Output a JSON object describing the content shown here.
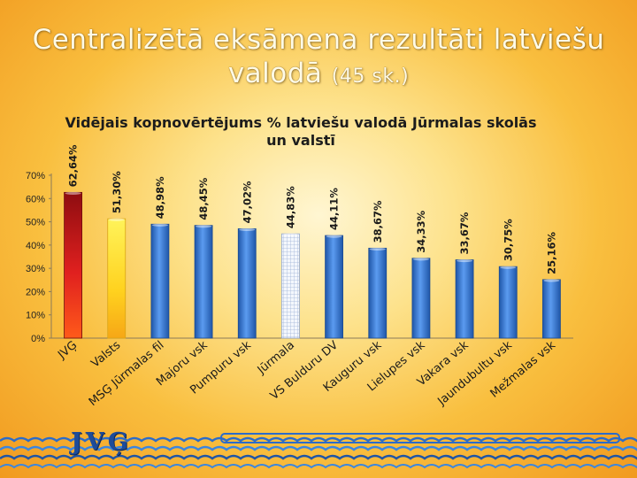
{
  "slide": {
    "title_main": "Centralizētā eksāmena rezultāti  latviešu valodā",
    "title_sub": "(45 sk.)",
    "brand": "JVĢ"
  },
  "chart_data": {
    "type": "bar",
    "title": "Vidējais kopnovērtējums % latviešu valodā Jūrmalas skolās un valstī",
    "categories": [
      "JVĢ",
      "Valsts",
      "MSĢ Jūrmalas fil",
      "Majoru vsk",
      "Pumpuru vsk",
      "Jūrmala",
      "VS Bulduru DV",
      "Kauguru vsk",
      "Lielupes vsk",
      "Vakara vsk",
      "Jaundubultu vsk",
      "Mežmalas vsk"
    ],
    "values": [
      62.64,
      51.3,
      48.98,
      48.45,
      47.02,
      44.83,
      44.11,
      38.67,
      34.33,
      33.67,
      30.75,
      25.16
    ],
    "data_labels": [
      "62,64%",
      "51,30%",
      "48,98%",
      "48,45%",
      "47,02%",
      "44,83%",
      "44,11%",
      "38,67%",
      "34,33%",
      "33,67%",
      "30,75%",
      "25,16%"
    ],
    "bar_styles": [
      "red",
      "yellow",
      "blue",
      "blue",
      "blue",
      "grid",
      "blue",
      "blue",
      "blue",
      "blue",
      "blue",
      "blue"
    ],
    "y_ticks": [
      "0%",
      "10%",
      "20%",
      "30%",
      "40%",
      "50%",
      "60%",
      "70%"
    ],
    "ylim": [
      0,
      70
    ],
    "grid": false,
    "colors": {
      "blue": "#3f7fd6",
      "red": "#c8161b",
      "yellow": "#ffe43a",
      "grid": "#dfe7f5"
    }
  }
}
